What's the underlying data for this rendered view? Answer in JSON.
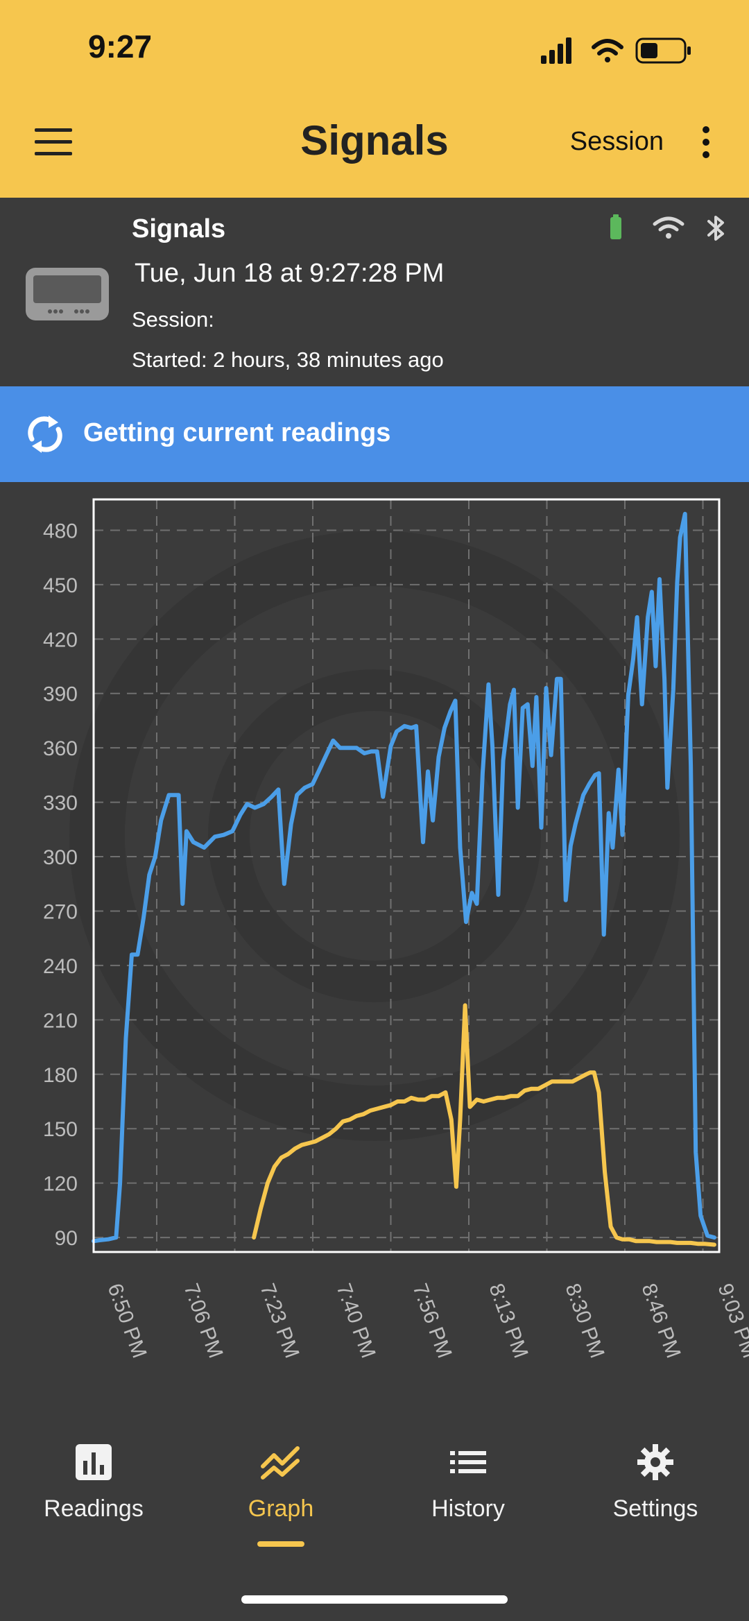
{
  "status_bar": {
    "time": "9:27"
  },
  "app_bar": {
    "title": "Signals",
    "session_label": "Session"
  },
  "device": {
    "name": "Signals",
    "datetime": "Tue, Jun 18  at 9:27:28 PM",
    "session": "Session:",
    "started": "Started: 2 hours, 38 minutes ago",
    "battery_color": "#5cb85c"
  },
  "banner": {
    "text": "Getting current readings",
    "color": "#4a8fe7"
  },
  "chart_data": {
    "type": "line",
    "yticks": [
      90,
      120,
      150,
      180,
      210,
      240,
      270,
      300,
      330,
      360,
      390,
      420,
      450,
      480
    ],
    "ylim": [
      82,
      497
    ],
    "xticks": [
      "6:50 PM",
      "7:06 PM",
      "7:23 PM",
      "7:40 PM",
      "7:56 PM",
      "8:13 PM",
      "8:30 PM",
      "8:46 PM",
      "9:03 PM"
    ],
    "series": [
      {
        "color": "#4b9ee8",
        "points": [
          [
            0,
            88
          ],
          [
            0.6,
            88.5
          ],
          [
            1.5,
            89
          ],
          [
            2.3,
            90
          ],
          [
            2.7,
            120
          ],
          [
            3.3,
            200
          ],
          [
            3.9,
            246
          ],
          [
            4.5,
            246
          ],
          [
            5.1,
            266
          ],
          [
            5.7,
            290
          ],
          [
            6.3,
            300
          ],
          [
            6.9,
            320
          ],
          [
            7.7,
            334
          ],
          [
            8.7,
            334
          ],
          [
            9.1,
            274
          ],
          [
            9.5,
            314
          ],
          [
            10.2,
            308
          ],
          [
            11.3,
            305
          ],
          [
            12.4,
            311
          ],
          [
            13.3,
            312
          ],
          [
            14.2,
            314
          ],
          [
            15,
            323
          ],
          [
            15.7,
            329
          ],
          [
            16.5,
            327
          ],
          [
            17.4,
            329
          ],
          [
            18.2,
            333
          ],
          [
            18.9,
            337
          ],
          [
            19.5,
            285
          ],
          [
            20.2,
            318
          ],
          [
            20.8,
            334
          ],
          [
            21.6,
            338
          ],
          [
            22.4,
            340
          ],
          [
            23.1,
            348
          ],
          [
            23.8,
            356
          ],
          [
            24.5,
            364
          ],
          [
            25.2,
            360
          ],
          [
            26.1,
            360
          ],
          [
            26.9,
            360
          ],
          [
            27.7,
            357
          ],
          [
            28.4,
            358
          ],
          [
            29,
            358
          ],
          [
            29.6,
            333
          ],
          [
            30.4,
            361
          ],
          [
            31,
            369
          ],
          [
            31.8,
            372
          ],
          [
            32.5,
            371
          ],
          [
            33,
            372
          ],
          [
            33.7,
            308
          ],
          [
            34.2,
            347
          ],
          [
            34.7,
            320
          ],
          [
            35.3,
            355
          ],
          [
            35.9,
            371
          ],
          [
            36.5,
            380
          ],
          [
            37,
            386
          ],
          [
            37.5,
            305
          ],
          [
            38.1,
            264
          ],
          [
            38.7,
            280
          ],
          [
            39.2,
            274
          ],
          [
            39.8,
            346
          ],
          [
            40.4,
            395
          ],
          [
            40.8,
            361
          ],
          [
            41.4,
            279
          ],
          [
            41.9,
            353
          ],
          [
            42.6,
            384
          ],
          [
            43,
            392
          ],
          [
            43.4,
            327
          ],
          [
            43.9,
            382
          ],
          [
            44.4,
            384
          ],
          [
            44.9,
            350
          ],
          [
            45.3,
            388
          ],
          [
            45.8,
            316
          ],
          [
            46.3,
            393
          ],
          [
            46.8,
            356
          ],
          [
            47.4,
            398
          ],
          [
            47.8,
            398
          ],
          [
            48.3,
            276
          ],
          [
            48.8,
            306
          ],
          [
            49.3,
            318
          ],
          [
            50.1,
            334
          ],
          [
            50.7,
            340
          ],
          [
            51.3,
            345
          ],
          [
            51.7,
            346
          ],
          [
            52.2,
            257
          ],
          [
            52.7,
            324
          ],
          [
            53.1,
            305
          ],
          [
            53.7,
            348
          ],
          [
            54.1,
            312
          ],
          [
            54.7,
            389
          ],
          [
            55.2,
            409
          ],
          [
            55.6,
            432
          ],
          [
            56.1,
            384
          ],
          [
            56.7,
            432
          ],
          [
            57.1,
            446
          ],
          [
            57.5,
            405
          ],
          [
            57.9,
            453
          ],
          [
            58.4,
            398
          ],
          [
            58.7,
            338
          ],
          [
            59.3,
            392
          ],
          [
            59.7,
            451
          ],
          [
            60,
            476
          ],
          [
            60.5,
            489
          ],
          [
            61.1,
            350
          ],
          [
            61.6,
            137
          ],
          [
            62.1,
            102
          ],
          [
            62.8,
            91
          ],
          [
            63.5,
            90
          ]
        ]
      },
      {
        "color": "#f6c64e",
        "points": [
          [
            16.4,
            90
          ],
          [
            17.1,
            106
          ],
          [
            17.8,
            120
          ],
          [
            18.5,
            129
          ],
          [
            19.2,
            134
          ],
          [
            19.9,
            136
          ],
          [
            20.6,
            139
          ],
          [
            21.3,
            141
          ],
          [
            22,
            142
          ],
          [
            22.7,
            143
          ],
          [
            23.4,
            145
          ],
          [
            24.1,
            147
          ],
          [
            24.8,
            150
          ],
          [
            25.5,
            154
          ],
          [
            26.2,
            155
          ],
          [
            26.9,
            157
          ],
          [
            27.6,
            158
          ],
          [
            28.3,
            160
          ],
          [
            29,
            161
          ],
          [
            29.7,
            162
          ],
          [
            30.4,
            163
          ],
          [
            31.1,
            165
          ],
          [
            31.8,
            165
          ],
          [
            32.5,
            167
          ],
          [
            33.2,
            166
          ],
          [
            33.9,
            166
          ],
          [
            34.6,
            168
          ],
          [
            35.3,
            168
          ],
          [
            36,
            170
          ],
          [
            36.6,
            155
          ],
          [
            37.1,
            118
          ],
          [
            37.5,
            155
          ],
          [
            38,
            218
          ],
          [
            38.5,
            162
          ],
          [
            39.2,
            166
          ],
          [
            39.9,
            165
          ],
          [
            40.6,
            166
          ],
          [
            41.3,
            167
          ],
          [
            42,
            167
          ],
          [
            42.7,
            168
          ],
          [
            43.4,
            168
          ],
          [
            44.1,
            171
          ],
          [
            44.8,
            172
          ],
          [
            45.5,
            172
          ],
          [
            46.2,
            174
          ],
          [
            46.9,
            176
          ],
          [
            47.6,
            176
          ],
          [
            48.3,
            176
          ],
          [
            49,
            176
          ],
          [
            49.7,
            178
          ],
          [
            50.4,
            180
          ],
          [
            50.8,
            181
          ],
          [
            51.2,
            181
          ],
          [
            51.7,
            170
          ],
          [
            52.3,
            126
          ],
          [
            52.9,
            96
          ],
          [
            53.5,
            90
          ],
          [
            54.1,
            89
          ],
          [
            54.8,
            89
          ],
          [
            55.5,
            88
          ],
          [
            56.2,
            88
          ],
          [
            56.9,
            88
          ],
          [
            57.6,
            87.5
          ],
          [
            58.3,
            87.5
          ],
          [
            59,
            87.5
          ],
          [
            59.7,
            87
          ],
          [
            60.4,
            87
          ],
          [
            61.1,
            87
          ],
          [
            61.8,
            86.5
          ],
          [
            62.5,
            86.5
          ],
          [
            63.5,
            86
          ]
        ]
      }
    ],
    "grid": true,
    "legend": "none"
  },
  "nav": {
    "items": [
      {
        "label": "Readings",
        "active": false
      },
      {
        "label": "Graph",
        "active": true
      },
      {
        "label": "History",
        "active": false
      },
      {
        "label": "Settings",
        "active": false
      }
    ],
    "active_color": "#f6c64e"
  }
}
